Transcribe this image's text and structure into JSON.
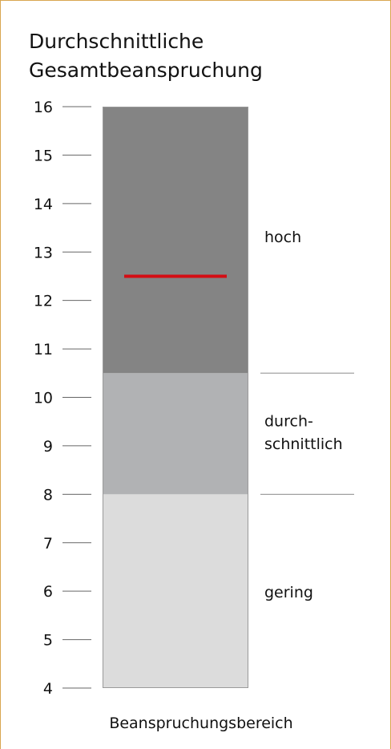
{
  "chart_data": {
    "type": "bar",
    "title_lines": [
      "Durchschnittliche",
      "Gesamtbeanspruchung"
    ],
    "xlabel": "Beanspruchungsbereich",
    "ylim": [
      4,
      16
    ],
    "yticks": [
      4,
      5,
      6,
      7,
      8,
      9,
      10,
      11,
      12,
      13,
      14,
      15,
      16
    ],
    "bands": [
      {
        "name": "gering",
        "label_lines": [
          "gering"
        ],
        "from": 4,
        "to": 8,
        "color": "#dcdcdc"
      },
      {
        "name": "durchschnittlich",
        "label_lines": [
          "durch-",
          "schnittlich"
        ],
        "from": 8,
        "to": 10.5,
        "color": "#b1b2b4"
      },
      {
        "name": "hoch",
        "label_lines": [
          "hoch"
        ],
        "from": 10.5,
        "to": 16,
        "color": "#848484"
      }
    ],
    "value": 12.5,
    "value_color": "#d40d14",
    "grid": false,
    "frame_color": "#d9a650"
  }
}
